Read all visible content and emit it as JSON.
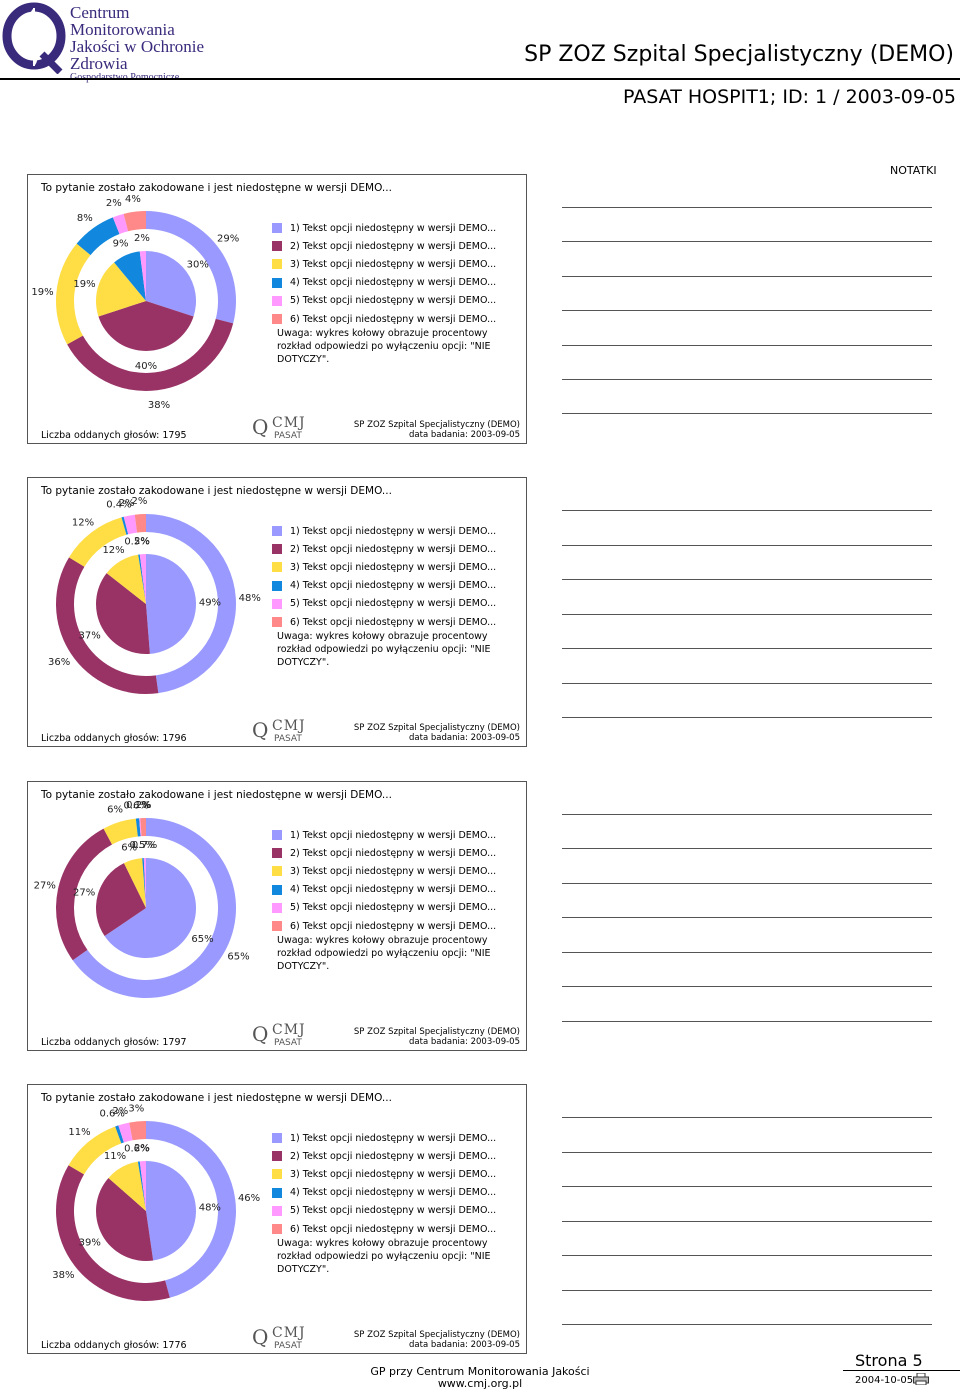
{
  "header": {
    "logo_lines": [
      "Centrum",
      "Monitorowania",
      "Jakości w Ochronie Zdrowia",
      "Gospodarstwo Pomocnicze"
    ],
    "title": "SP ZOZ Szpital Specjalistyczny (DEMO)",
    "subtitle": "PASAT HOSPIT1; ID: 1  / 2003-09-05"
  },
  "notes": {
    "label": "NOTATKI"
  },
  "colors": [
    "#9999ff",
    "#993366",
    "#ffdd44",
    "#1188dd",
    "#ff99ff",
    "#ff8888"
  ],
  "chart_data": [
    {
      "type": "pie",
      "title": "To pytanie zostało zakodowane i jest niedostępne w wersji DEMO...",
      "categories": [
        "1) Tekst opcji niedostępny w wersji DEMO...",
        "2) Tekst opcji niedostępny w wersji DEMO...",
        "3) Tekst opcji niedostępny w wersji DEMO...",
        "4) Tekst opcji niedostępny w wersji DEMO...",
        "5) Tekst opcji niedostępny w wersji DEMO...",
        "6) Tekst opcji niedostępny w wersji DEMO..."
      ],
      "series": [
        {
          "values": [
            29,
            38,
            19,
            8,
            2,
            4
          ],
          "labels": [
            "29%",
            "38%",
            "19%",
            "8%",
            "2%",
            "4%"
          ]
        },
        {
          "values": [
            30,
            40,
            19,
            9,
            2,
            0
          ],
          "labels": [
            "30%",
            "40%",
            "19%",
            "9%",
            "2%",
            ""
          ]
        }
      ],
      "note": "Uwaga: wykres kołowy obrazuje procentowy rozkład odpowiedzi po wyłączeniu opcji: \"NIE DOTYCZY\".",
      "votes": "Liczba oddanych głosów: 1795",
      "footer_org": "SP ZOZ Szpital Specjalistyczny (DEMO)",
      "footer_date": "data badania: 2003-09-05"
    },
    {
      "type": "pie",
      "title": "To pytanie zostało zakodowane i jest niedostępne w wersji DEMO...",
      "categories": [
        "1) Tekst opcji niedostępny w wersji DEMO...",
        "2) Tekst opcji niedostępny w wersji DEMO...",
        "3) Tekst opcji niedostępny w wersji DEMO...",
        "4) Tekst opcji niedostępny w wersji DEMO...",
        "5) Tekst opcji niedostępny w wersji DEMO...",
        "6) Tekst opcji niedostępny w wersji DEMO..."
      ],
      "series": [
        {
          "values": [
            48,
            36,
            12,
            0.4,
            2,
            2
          ],
          "labels": [
            "48%",
            "36%",
            "12%",
            "0.4%",
            "2%",
            "2%"
          ]
        },
        {
          "values": [
            49,
            37,
            12,
            0.5,
            2,
            0
          ],
          "labels": [
            "49%",
            "37%",
            "12%",
            "0.5%",
            "2%",
            ""
          ]
        }
      ],
      "note": "Uwaga: wykres kołowy obrazuje procentowy rozkład odpowiedzi po wyłączeniu opcji: \"NIE DOTYCZY\".",
      "votes": "Liczba oddanych głosów: 1796",
      "footer_org": "SP ZOZ Szpital Specjalistyczny (DEMO)",
      "footer_date": "data badania: 2003-09-05"
    },
    {
      "type": "pie",
      "title": "To pytanie zostało zakodowane i jest niedostępne w wersji DEMO...",
      "categories": [
        "1) Tekst opcji niedostępny w wersji DEMO...",
        "2) Tekst opcji niedostępny w wersji DEMO...",
        "3) Tekst opcji niedostępny w wersji DEMO...",
        "4) Tekst opcji niedostępny w wersji DEMO...",
        "5) Tekst opcji niedostępny w wersji DEMO...",
        "6) Tekst opcji niedostępny w wersji DEMO..."
      ],
      "series": [
        {
          "values": [
            65,
            27,
            6,
            0.6,
            0.2,
            1
          ],
          "labels": [
            "65%",
            "27%",
            "6%",
            "0.6%",
            "0.2%",
            "1%"
          ]
        },
        {
          "values": [
            65,
            27,
            6,
            0.5,
            0.7,
            0
          ],
          "labels": [
            "65%",
            "27%",
            "6%",
            "0.5%",
            "0.7%",
            ""
          ]
        }
      ],
      "note": "Uwaga: wykres kołowy obrazuje procentowy rozkład odpowiedzi po wyłączeniu opcji: \"NIE DOTYCZY\".",
      "votes": "Liczba oddanych głosów: 1797",
      "footer_org": "SP ZOZ Szpital Specjalistyczny (DEMO)",
      "footer_date": "data badania: 2003-09-05"
    },
    {
      "type": "pie",
      "title": "To pytanie zostało zakodowane i jest niedostępne w wersji DEMO...",
      "categories": [
        "1) Tekst opcji niedostępny w wersji DEMO...",
        "2) Tekst opcji niedostępny w wersji DEMO...",
        "3) Tekst opcji niedostępny w wersji DEMO...",
        "4) Tekst opcji niedostępny w wersji DEMO...",
        "5) Tekst opcji niedostępny w wersji DEMO...",
        "6) Tekst opcji niedostępny w wersji DEMO..."
      ],
      "series": [
        {
          "values": [
            46,
            38,
            11,
            0.6,
            2,
            3
          ],
          "labels": [
            "46%",
            "38%",
            "11%",
            "0.6%",
            "2%",
            "3%"
          ]
        },
        {
          "values": [
            48,
            39,
            11,
            0.6,
            2,
            0
          ],
          "labels": [
            "48%",
            "39%",
            "11%",
            "0.6%",
            "2%",
            ""
          ]
        }
      ],
      "note": "Uwaga: wykres kołowy obrazuje procentowy rozkład odpowiedzi po wyłączeniu opcji: \"NIE DOTYCZY\".",
      "votes": "Liczba oddanych głosów: 1776",
      "footer_org": "SP ZOZ Szpital Specjalistyczny (DEMO)",
      "footer_date": "data badania: 2003-09-05"
    }
  ],
  "panel_logo": {
    "q": "Q",
    "cmj": "CMJ",
    "pasat": "PASAT"
  },
  "footer": {
    "center_line1": "GP przy Centrum Monitorowania Jakości",
    "center_line2": "www.cmj.org.pl",
    "page": "Strona 5",
    "date": "2004-10-05"
  }
}
